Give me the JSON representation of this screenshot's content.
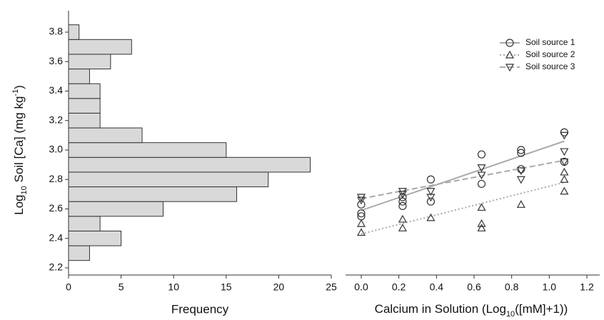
{
  "chart_data": [
    {
      "type": "histogram",
      "orientation": "horizontal",
      "xlabel": "Frequency",
      "ylabel": [
        "Log",
        "10",
        " Soil [Ca] (mg kg",
        "-1",
        ")"
      ],
      "bins": [
        2.25,
        2.35,
        2.45,
        2.55,
        2.65,
        2.75,
        2.85,
        2.95,
        3.05,
        3.15,
        3.25,
        3.35,
        3.45,
        3.55,
        3.65,
        3.75,
        3.85
      ],
      "values": [
        2,
        5,
        3,
        9,
        16,
        19,
        23,
        15,
        7,
        3,
        3,
        3,
        2,
        4,
        6,
        1
      ],
      "color": "#d9d9d9",
      "xlim": [
        0,
        25
      ],
      "xticks": [
        0,
        5,
        10,
        15,
        20,
        25
      ],
      "ylim": [
        2.2,
        3.8
      ],
      "yticks": [
        2.2,
        2.4,
        2.6,
        2.8,
        {
          "value": 3,
          "label": "3.0"
        },
        3.2,
        3.4,
        3.6,
        3.8
      ]
    },
    {
      "type": "scatter",
      "xlabel": [
        "Calcium in Solution (Log",
        "10",
        "([mM]+1))"
      ],
      "xlim": [
        0,
        1.2
      ],
      "xticks": [
        {
          "value": 0,
          "label": "0.0"
        },
        0.2,
        0.4,
        0.6,
        0.8,
        {
          "value": 1,
          "label": "1.0"
        },
        1.2
      ],
      "ylim": [
        2.2,
        3.8
      ],
      "legend": "upper right",
      "series": [
        {
          "name": "Soil source 1",
          "marker": "circle",
          "line_style": "solid",
          "color": "#aaaaaa",
          "x": [
            0,
            0,
            0,
            0.22,
            0.22,
            0.22,
            0.37,
            0.37,
            0.64,
            0.64,
            0.85,
            0.85,
            0.85,
            1.08,
            1.08
          ],
          "values": [
            2.63,
            2.57,
            2.55,
            2.68,
            2.65,
            2.62,
            2.8,
            2.65,
            2.97,
            2.77,
            3,
            2.98,
            2.87,
            3.12,
            2.92
          ],
          "fit_x": [
            0,
            1.08
          ],
          "fit": [
            2.59,
            3.06
          ]
        },
        {
          "name": "Soil source 2",
          "marker": "triangle-up",
          "line_style": "dotted",
          "color": "#aaaaaa",
          "x": [
            0,
            0,
            0.22,
            0.22,
            0.37,
            0.64,
            0.64,
            0.64,
            0.85,
            1.08,
            1.08,
            1.08
          ],
          "values": [
            2.5,
            2.44,
            2.53,
            2.47,
            2.54,
            2.61,
            2.5,
            2.47,
            2.63,
            2.85,
            2.8,
            2.72
          ],
          "fit_x": [
            0,
            1.08
          ],
          "fit": [
            2.43,
            2.78
          ]
        },
        {
          "name": "Soil source 3",
          "marker": "triangle-down",
          "line_style": "dashed",
          "color": "#aaaaaa",
          "x": [
            0,
            0,
            0.22,
            0.22,
            0.37,
            0.37,
            0.64,
            0.64,
            0.85,
            0.85,
            1.08,
            1.08,
            1.08
          ],
          "values": [
            2.68,
            2.66,
            2.72,
            2.7,
            2.72,
            2.68,
            2.88,
            2.83,
            2.86,
            2.8,
            3.1,
            2.99,
            2.92
          ],
          "fit_x": [
            0,
            1.08
          ],
          "fit": [
            2.67,
            2.93
          ]
        }
      ]
    }
  ]
}
